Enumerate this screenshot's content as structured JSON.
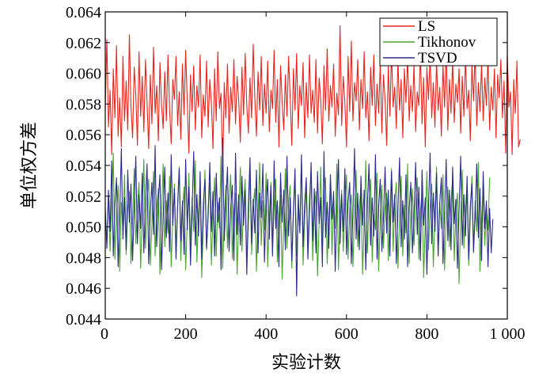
{
  "chart_data": {
    "type": "line",
    "title": "",
    "xlabel": "实验计数",
    "ylabel": "单位权方差",
    "xlim": [
      0,
      1000
    ],
    "ylim": [
      0.044,
      0.064
    ],
    "x_ticks": [
      0,
      200,
      400,
      600,
      800,
      1000
    ],
    "x_tick_labels": [
      "0",
      "200",
      "400",
      "600",
      "800",
      "1 000"
    ],
    "y_ticks": [
      0.044,
      0.046,
      0.048,
      0.05,
      0.052,
      0.054,
      0.056,
      0.058,
      0.06,
      0.062,
      0.064
    ],
    "y_tick_labels": [
      "0.044",
      "0.046",
      "0.048",
      "0.050",
      "0.052",
      "0.054",
      "0.056",
      "0.058",
      "0.060",
      "0.062",
      "0.064"
    ],
    "grid": false,
    "legend_position": "top-right",
    "sampling": {
      "x_start": 0,
      "x_step": 4
    },
    "series": [
      {
        "name": "LS",
        "color": "#e8231c",
        "values": [
          0.0576,
          0.0622,
          0.0565,
          0.0589,
          0.0547,
          0.0603,
          0.0571,
          0.0618,
          0.0559,
          0.0584,
          0.0552,
          0.0611,
          0.0569,
          0.0595,
          0.0563,
          0.0625,
          0.0578,
          0.0558,
          0.0604,
          0.0586,
          0.0553,
          0.0614,
          0.0572,
          0.0598,
          0.0562,
          0.0609,
          0.0581,
          0.0551,
          0.0599,
          0.0567,
          0.0617,
          0.0574,
          0.0592,
          0.0556,
          0.0607,
          0.0579,
          0.0564,
          0.0601,
          0.0569,
          0.0612,
          0.0577,
          0.0554,
          0.0596,
          0.0583,
          0.0611,
          0.0566,
          0.0588,
          0.0557,
          0.0606,
          0.0573,
          0.0615,
          0.0581,
          0.0548,
          0.0599,
          0.0575,
          0.0605,
          0.0563,
          0.0592,
          0.0578,
          0.0612,
          0.0558,
          0.0586,
          0.0572,
          0.0608,
          0.0565,
          0.0596,
          0.0581,
          0.0551,
          0.0603,
          0.0569,
          0.0614,
          0.0577,
          0.0587,
          0.0536,
          0.0594,
          0.0571,
          0.0606,
          0.0561,
          0.0591,
          0.0575,
          0.0609,
          0.0567,
          0.0598,
          0.0582,
          0.0555,
          0.0604,
          0.0573,
          0.0613,
          0.0579,
          0.0561,
          0.0597,
          0.0571,
          0.0619,
          0.0584,
          0.0559,
          0.0601,
          0.0576,
          0.0611,
          0.0566,
          0.0593,
          0.0574,
          0.0608,
          0.0562,
          0.0589,
          0.0577,
          0.0615,
          0.0568,
          0.0596,
          0.0552,
          0.0605,
          0.0581,
          0.0563,
          0.0599,
          0.0572,
          0.0611,
          0.0584,
          0.0553,
          0.0603,
          0.0576,
          0.0613,
          0.0564,
          0.0592,
          0.0579,
          0.0607,
          0.0558,
          0.0594,
          0.0571,
          0.0612,
          0.0574,
          0.0589,
          0.0568,
          0.0609,
          0.0561,
          0.0597,
          0.0583,
          0.0554,
          0.0605,
          0.0576,
          0.0616,
          0.0569,
          0.0592,
          0.0578,
          0.0606,
          0.0559,
          0.0587,
          0.0573,
          0.0631,
          0.0566,
          0.0598,
          0.0581,
          0.0552,
          0.0611,
          0.0575,
          0.0621,
          0.0569,
          0.0594,
          0.0582,
          0.0609,
          0.0563,
          0.0596,
          0.0577,
          0.0614,
          0.0571,
          0.0588,
          0.0556,
          0.0604,
          0.0579,
          0.0612,
          0.0566,
          0.0593,
          0.0574,
          0.0607,
          0.0561,
          0.0599,
          0.0583,
          0.0553,
          0.0605,
          0.0572,
          0.0615,
          0.0578,
          0.0591,
          0.0564,
          0.0609,
          0.0576,
          0.0596,
          0.0558,
          0.0603,
          0.0581,
          0.0611,
          0.0569,
          0.0592,
          0.0575,
          0.0606,
          0.0562,
          0.0588,
          0.0579,
          0.0614,
          0.0567,
          0.0597,
          0.0552,
          0.0604,
          0.0583,
          0.0612,
          0.0571,
          0.0594,
          0.0565,
          0.0608,
          0.0576,
          0.0591,
          0.0559,
          0.0605,
          0.0578,
          0.0617,
          0.0563,
          0.0596,
          0.0574,
          0.0609,
          0.0568,
          0.0593,
          0.0581,
          0.0603,
          0.0561,
          0.0598,
          0.0572,
          0.0611,
          0.0577,
          0.0589,
          0.0556,
          0.0606,
          0.0582,
          0.0614,
          0.0566,
          0.0594,
          0.0575,
          0.0607,
          0.0569,
          0.0597,
          0.0579,
          0.0612,
          0.0563,
          0.0591,
          0.0576,
          0.0603,
          0.0558,
          0.0599,
          0.0584,
          0.0609,
          0.0571,
          0.0595,
          0.0548,
          0.0612,
          0.0578,
          0.0588,
          0.0547,
          0.0596,
          0.0574,
          0.0608,
          0.0552,
          0.0557
        ]
      },
      {
        "name": "Tikhonov",
        "color": "#4aa52f",
        "values": [
          0.0505,
          0.0493,
          0.0521,
          0.0484,
          0.0513,
          0.0548,
          0.0479,
          0.0508,
          0.0527,
          0.0471,
          0.0516,
          0.0498,
          0.0534,
          0.0482,
          0.0511,
          0.0523,
          0.0476,
          0.0505,
          0.0538,
          0.0489,
          0.0514,
          0.0529,
          0.0473,
          0.0507,
          0.0544,
          0.0486,
          0.0518,
          0.0531,
          0.0475,
          0.0502,
          0.0536,
          0.0481,
          0.0512,
          0.0525,
          0.0469,
          0.0509,
          0.0541,
          0.0487,
          0.0517,
          0.0496,
          0.0533,
          0.0474,
          0.0506,
          0.0528,
          0.0483,
          0.0515,
          0.0539,
          0.0478,
          0.0511,
          0.0526,
          0.0472,
          0.0504,
          0.0535,
          0.0488,
          0.0519,
          0.0497,
          0.0543,
          0.0477,
          0.0509,
          0.0524,
          0.0467,
          0.0503,
          0.0537,
          0.0485,
          0.0513,
          0.0529,
          0.0475,
          0.0508,
          0.0532,
          0.0481,
          0.0516,
          0.0499,
          0.0546,
          0.0473,
          0.0505,
          0.0527,
          0.0486,
          0.0518,
          0.0534,
          0.0479,
          0.0511,
          0.0522,
          0.0469,
          0.0507,
          0.0539,
          0.0484,
          0.0515,
          0.0531,
          0.0476,
          0.0502,
          0.0537,
          0.0482,
          0.0514,
          0.0525,
          0.0471,
          0.0508,
          0.0542,
          0.0488,
          0.0517,
          0.0498,
          0.0535,
          0.0474,
          0.0506,
          0.0529,
          0.0483,
          0.0513,
          0.0531,
          0.0477,
          0.0509,
          0.0521,
          0.0466,
          0.0504,
          0.0538,
          0.0486,
          0.0516,
          0.0527,
          0.0473,
          0.0508,
          0.0533,
          0.0481,
          0.0512,
          0.0497,
          0.0544,
          0.0475,
          0.0505,
          0.0526,
          0.0487,
          0.0519,
          0.0536,
          0.0478,
          0.0511,
          0.0523,
          0.0468,
          0.0503,
          0.0539,
          0.0485,
          0.0514,
          0.0532,
          0.0476,
          0.0506,
          0.0528,
          0.0482,
          0.0517,
          0.0499,
          0.0541,
          0.0472,
          0.0507,
          0.0524,
          0.0484,
          0.0515,
          0.0534,
          0.0479,
          0.0511,
          0.0521,
          0.0474,
          0.0509,
          0.0537,
          0.0487,
          0.0513,
          0.0526,
          0.0469,
          0.0504,
          0.0543,
          0.0483,
          0.0516,
          0.0531,
          0.0477,
          0.0508,
          0.0498,
          0.0535,
          0.0471,
          0.0506,
          0.0527,
          0.0486,
          0.0512,
          0.0522,
          0.0478,
          0.0509,
          0.0538,
          0.0484,
          0.0517,
          0.0529,
          0.0473,
          0.0505,
          0.0533,
          0.0481,
          0.0514,
          0.0496,
          0.0541,
          0.0476,
          0.0507,
          0.0525,
          0.0488,
          0.0515,
          0.0532,
          0.0479,
          0.0511,
          0.0523,
          0.0467,
          0.0503,
          0.0536,
          0.0485,
          0.0513,
          0.0528,
          0.0474,
          0.0508,
          0.0539,
          0.0482,
          0.0516,
          0.0499,
          0.0534,
          0.0472,
          0.0506,
          0.0526,
          0.0487,
          0.0518,
          0.0531,
          0.0478,
          0.0509,
          0.0522,
          0.0463,
          0.0504,
          0.0537,
          0.0486,
          0.0514,
          0.0527,
          0.0475,
          0.0507,
          0.0533,
          0.0483,
          0.0517,
          0.0497,
          0.0542,
          0.0471,
          0.0505,
          0.0525,
          0.0488,
          0.0512,
          0.0498,
          0.0532
        ]
      },
      {
        "name": "TSVD",
        "color": "#2c2a8c",
        "values": [
          0.0512,
          0.0486,
          0.0524,
          0.0497,
          0.0543,
          0.0481,
          0.0515,
          0.0532,
          0.0474,
          0.0508,
          0.0551,
          0.0492,
          0.0519,
          0.0485,
          0.0537,
          0.0503,
          0.0528,
          0.0478,
          0.0512,
          0.0546,
          0.0489,
          0.0521,
          0.0499,
          0.0535,
          0.0483,
          0.0516,
          0.0541,
          0.0476,
          0.0509,
          0.0529,
          0.0495,
          0.0553,
          0.0487,
          0.0518,
          0.0534,
          0.0472,
          0.0506,
          0.0539,
          0.0493,
          0.0522,
          0.0484,
          0.0547,
          0.0501,
          0.0525,
          0.0479,
          0.0513,
          0.0538,
          0.0491,
          0.0517,
          0.0482,
          0.0544,
          0.0498,
          0.0526,
          0.0475,
          0.0511,
          0.0549,
          0.0488,
          0.0521,
          0.0494,
          0.0536,
          0.0479,
          0.0515,
          0.0531,
          0.0486,
          0.0507,
          0.0542,
          0.0497,
          0.0523,
          0.0481,
          0.0535,
          0.0503,
          0.0519,
          0.0472,
          0.0558,
          0.0491,
          0.0516,
          0.0539,
          0.0484,
          0.0512,
          0.0527,
          0.0478,
          0.0548,
          0.0495,
          0.0521,
          0.0488,
          0.0533,
          0.0501,
          0.0524,
          0.0469,
          0.0514,
          0.0545,
          0.0489,
          0.0518,
          0.0496,
          0.0537,
          0.0483,
          0.0522,
          0.0506,
          0.0541,
          0.0477,
          0.0513,
          0.0531,
          0.0492,
          0.0527,
          0.0481,
          0.0543,
          0.0499,
          0.0517,
          0.0474,
          0.0535,
          0.0503,
          0.0524,
          0.0485,
          0.0546,
          0.0494,
          0.0519,
          0.0478,
          0.0511,
          0.0538,
          0.0455,
          0.0521,
          0.0496,
          0.0547,
          0.0487,
          0.0515,
          0.0532,
          0.0479,
          0.0509,
          0.0542,
          0.0491,
          0.0525,
          0.0483,
          0.0536,
          0.0502,
          0.0519,
          0.0474,
          0.0549,
          0.0493,
          0.0516,
          0.0486,
          0.0534,
          0.0505,
          0.0523,
          0.0471,
          0.0512,
          0.0544,
          0.0489,
          0.0521,
          0.0497,
          0.0538,
          0.0482,
          0.0516,
          0.0529,
          0.0476,
          0.0509,
          0.0551,
          0.0492,
          0.0522,
          0.0485,
          0.0533,
          0.0501,
          0.0524,
          0.0472,
          0.0515,
          0.0541,
          0.0488,
          0.0519,
          0.0494,
          0.0547,
          0.0479,
          0.0513,
          0.0531,
          0.0484,
          0.0506,
          0.0539,
          0.0496,
          0.0524,
          0.0481,
          0.0536,
          0.0503,
          0.0521,
          0.0476,
          0.0511,
          0.0545,
          0.0487,
          0.0517,
          0.0492,
          0.0534,
          0.0474,
          0.0512,
          0.0529,
          0.0483,
          0.0508,
          0.0542,
          0.0495,
          0.0526,
          0.0478,
          0.0537,
          0.0501,
          0.0519,
          0.0469,
          0.0513,
          0.0548,
          0.0489,
          0.0522,
          0.0497,
          0.0535,
          0.0481,
          0.0516,
          0.0532,
          0.0476,
          0.0509,
          0.0544,
          0.0491,
          0.0524,
          0.0485,
          0.0539,
          0.0502,
          0.0518,
          0.0473,
          0.0511,
          0.0546,
          0.0488,
          0.0521,
          0.0494,
          0.0533,
          0.0479,
          0.0514,
          0.0528,
          0.0484,
          0.0507,
          0.0541,
          0.0493,
          0.0525,
          0.0478,
          0.0536,
          0.0499,
          0.0517,
          0.0474,
          0.0512,
          0.0483,
          0.0505
        ]
      }
    ]
  }
}
